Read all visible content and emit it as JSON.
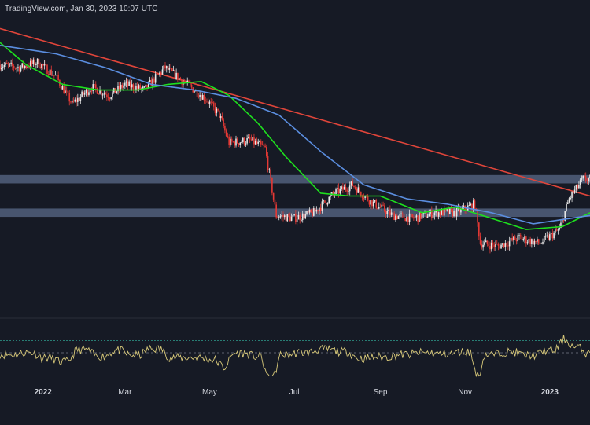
{
  "watermark": "TradingView.com, Jan 30, 2023 10:07 UTC",
  "colors": {
    "background": "#161a25",
    "bull_candle": "#e6e6e6",
    "bear_candle": "#e53935",
    "trendline": "#e0453a",
    "ma_green": "#1ee01e",
    "ma_blue": "#5b8ee0",
    "zone_fill": "#5a6a88",
    "rsi_line": "#d8c97a",
    "rsi_band_upper": "#2e9e8e",
    "rsi_band_lower": "#c0362c"
  },
  "chart_data": {
    "type": "line",
    "title": "",
    "x_ticks": [
      {
        "label": "2022",
        "date": "2022-01-01",
        "bold": true
      },
      {
        "label": "Mar",
        "date": "2022-03-01",
        "bold": false
      },
      {
        "label": "May",
        "date": "2022-05-01",
        "bold": false
      },
      {
        "label": "Jul",
        "date": "2022-07-01",
        "bold": false
      },
      {
        "label": "Sep",
        "date": "2022-09-01",
        "bold": false
      },
      {
        "label": "Nov",
        "date": "2022-11-01",
        "bold": false
      },
      {
        "label": "2023",
        "date": "2023-01-01",
        "bold": true
      }
    ],
    "x_range": [
      "2021-12-01",
      "2023-01-30"
    ],
    "y_range": [
      0,
      100
    ],
    "price_series": {
      "name": "",
      "points": [
        [
          "2021-12-01",
          88
        ],
        [
          "2021-12-15",
          87
        ],
        [
          "2021-12-28",
          89
        ],
        [
          "2022-01-10",
          84
        ],
        [
          "2022-01-22",
          74
        ],
        [
          "2022-02-05",
          80
        ],
        [
          "2022-02-18",
          77
        ],
        [
          "2022-03-01",
          81
        ],
        [
          "2022-03-15",
          79
        ],
        [
          "2022-03-30",
          87
        ],
        [
          "2022-04-12",
          82
        ],
        [
          "2022-04-28",
          76
        ],
        [
          "2022-05-08",
          70
        ],
        [
          "2022-05-15",
          60
        ],
        [
          "2022-05-30",
          61
        ],
        [
          "2022-06-10",
          58
        ],
        [
          "2022-06-18",
          34
        ],
        [
          "2022-07-01",
          33
        ],
        [
          "2022-07-15",
          35
        ],
        [
          "2022-07-30",
          42
        ],
        [
          "2022-08-12",
          45
        ],
        [
          "2022-08-25",
          39
        ],
        [
          "2022-09-10",
          34
        ],
        [
          "2022-09-25",
          33
        ],
        [
          "2022-10-10",
          35
        ],
        [
          "2022-10-25",
          35
        ],
        [
          "2022-11-08",
          38
        ],
        [
          "2022-11-12",
          24
        ],
        [
          "2022-11-25",
          23
        ],
        [
          "2022-12-10",
          26
        ],
        [
          "2022-12-25",
          24
        ],
        [
          "2023-01-08",
          29
        ],
        [
          "2023-01-15",
          40
        ],
        [
          "2023-01-25",
          47
        ],
        [
          "2023-01-30",
          47
        ]
      ]
    },
    "moving_averages": [
      {
        "name": "",
        "color_key": "ma_green",
        "points": [
          [
            "2021-12-01",
            96
          ],
          [
            "2021-12-20",
            88
          ],
          [
            "2022-01-15",
            81
          ],
          [
            "2022-02-10",
            79
          ],
          [
            "2022-03-10",
            79
          ],
          [
            "2022-04-01",
            81
          ],
          [
            "2022-04-25",
            82
          ],
          [
            "2022-05-15",
            77
          ],
          [
            "2022-06-05",
            67
          ],
          [
            "2022-06-25",
            55
          ],
          [
            "2022-07-20",
            42
          ],
          [
            "2022-08-10",
            41
          ],
          [
            "2022-09-01",
            41
          ],
          [
            "2022-10-01",
            35
          ],
          [
            "2022-10-25",
            37
          ],
          [
            "2022-11-20",
            33
          ],
          [
            "2022-12-15",
            29
          ],
          [
            "2023-01-10",
            30
          ],
          [
            "2023-01-30",
            35
          ]
        ]
      },
      {
        "name": "",
        "color_key": "ma_blue",
        "points": [
          [
            "2021-12-01",
            95
          ],
          [
            "2022-01-10",
            92
          ],
          [
            "2022-02-15",
            87
          ],
          [
            "2022-03-20",
            81
          ],
          [
            "2022-04-20",
            79
          ],
          [
            "2022-05-20",
            76
          ],
          [
            "2022-06-20",
            70
          ],
          [
            "2022-07-20",
            57
          ],
          [
            "2022-08-20",
            45
          ],
          [
            "2022-09-20",
            40
          ],
          [
            "2022-10-20",
            38
          ],
          [
            "2022-11-20",
            35
          ],
          [
            "2022-12-20",
            31
          ],
          [
            "2023-01-30",
            34
          ]
        ]
      }
    ],
    "trendline": {
      "points": [
        [
          "2021-12-01",
          101
        ],
        [
          "2023-01-30",
          41
        ]
      ]
    },
    "horizontal_zones": [
      {
        "y_low": 45.5,
        "y_high": 48.5
      },
      {
        "y_low": 33.5,
        "y_high": 36.5
      }
    ],
    "rsi": {
      "range": [
        0,
        100
      ],
      "upper_band": 70,
      "lower_band": 30,
      "mid": 50
    }
  }
}
